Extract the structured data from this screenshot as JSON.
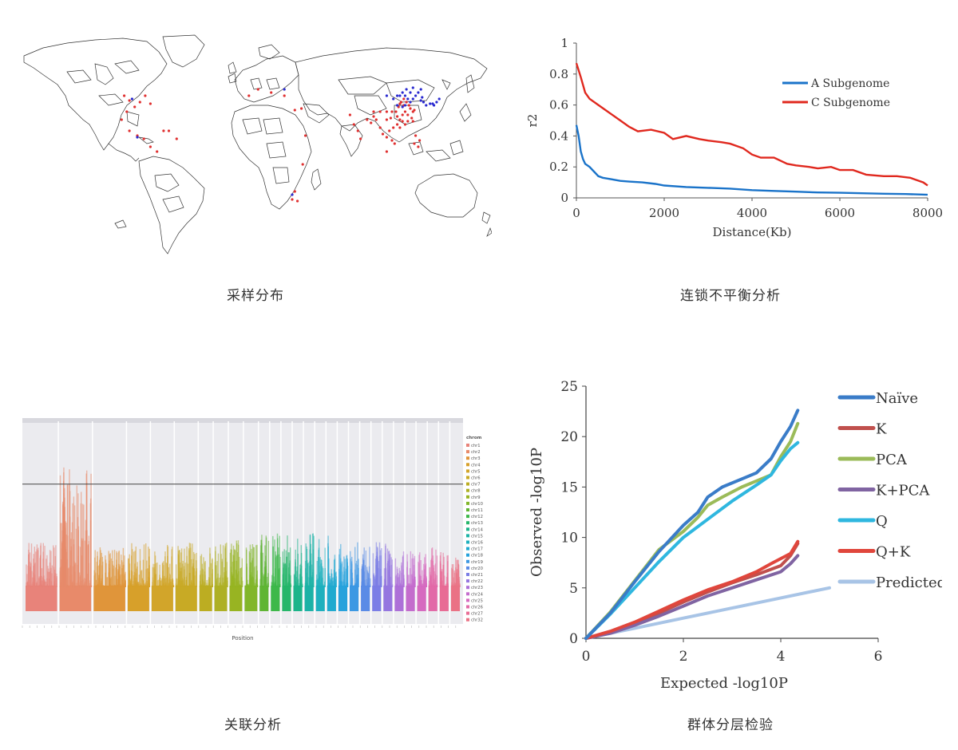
{
  "captions": {
    "map": "采样分布",
    "ld": "连锁不平衡分析",
    "gwas": "关联分析",
    "qq": "群体分层检验"
  },
  "chart_data": [
    {
      "id": "sampling-map",
      "type": "scatter",
      "title": "",
      "colors": {
        "red": "#e03030",
        "blue": "#2a2ad0"
      },
      "series": [
        {
          "values_lonlat": [
            [
              -100,
              40
            ],
            [
              -96,
              37
            ],
            [
              -92,
              33
            ],
            [
              -88,
              36
            ],
            [
              -84,
              40
            ],
            [
              -80,
              35
            ],
            [
              -98,
              30
            ],
            [
              -102,
              25
            ],
            [
              -96,
              18
            ],
            [
              -90,
              15
            ],
            [
              -85,
              13
            ],
            [
              -80,
              8
            ],
            [
              -75,
              5
            ],
            [
              -70,
              18
            ],
            [
              -66,
              18
            ],
            [
              -60,
              13
            ],
            [
              -5,
              40
            ],
            [
              2,
              44
            ],
            [
              12,
              42
            ],
            [
              22,
              40
            ],
            [
              30,
              31
            ],
            [
              35,
              32
            ],
            [
              38,
              15
            ],
            [
              36,
              -3
            ],
            [
              30,
              -20
            ],
            [
              28,
              -25
            ],
            [
              32,
              -26
            ],
            [
              72,
              28
            ],
            [
              75,
              22
            ],
            [
              78,
              18
            ],
            [
              80,
              13
            ],
            [
              85,
              25
            ],
            [
              88,
              23
            ],
            [
              90,
              27
            ],
            [
              92,
              25
            ],
            [
              95,
              20
            ],
            [
              97,
              16
            ],
            [
              100,
              14
            ],
            [
              102,
              18
            ],
            [
              104,
              12
            ],
            [
              105,
              20
            ],
            [
              106,
              10
            ],
            [
              100,
              5
            ],
            [
              110,
              20
            ],
            [
              108,
              22
            ],
            [
              110,
              25
            ],
            [
              112,
              28
            ],
            [
              114,
              30
            ],
            [
              116,
              28
            ],
            [
              118,
              32
            ],
            [
              120,
              30
            ],
            [
              113,
              34
            ],
            [
              111,
              36
            ],
            [
              115,
              36
            ],
            [
              117,
              34
            ],
            [
              121,
              31
            ],
            [
              119,
              26
            ],
            [
              107,
              30
            ],
            [
              104,
              30
            ],
            [
              103,
              26
            ],
            [
              100,
              25
            ],
            [
              109,
              33
            ],
            [
              112,
              24
            ],
            [
              116,
              24
            ],
            [
              114,
              22
            ],
            [
              120,
              24
            ],
            [
              122,
              15
            ],
            [
              121,
              10
            ],
            [
              124,
              8
            ],
            [
              125,
              12
            ],
            [
              100,
              30
            ],
            [
              95,
              30
            ],
            [
              90,
              30
            ],
            [
              110,
              35
            ],
            [
              113,
              38
            ],
            [
              108,
              27
            ]
          ]
        },
        {
          "values_lonlat": [
            [
              -94,
              38
            ],
            [
              -90,
              14
            ],
            [
              22,
              44
            ],
            [
              28,
              -22
            ],
            [
              114,
              40
            ],
            [
              116,
              38
            ],
            [
              118,
              42
            ],
            [
              120,
              38
            ],
            [
              122,
              40
            ],
            [
              124,
              42
            ],
            [
              126,
              44
            ],
            [
              126,
              37
            ],
            [
              128,
              36
            ],
            [
              127,
              39
            ],
            [
              130,
              34
            ],
            [
              133,
              35
            ],
            [
              135,
              35
            ],
            [
              138,
              36
            ],
            [
              140,
              38
            ],
            [
              136,
              34
            ],
            [
              110,
              40
            ],
            [
              112,
              42
            ],
            [
              108,
              40
            ],
            [
              105,
              38
            ],
            [
              100,
              40
            ],
            [
              115,
              44
            ],
            [
              120,
              45
            ],
            [
              118,
              36
            ],
            [
              112,
              33
            ],
            [
              108,
              34
            ],
            [
              114,
              34
            ]
          ]
        }
      ]
    },
    {
      "id": "ld-decay",
      "type": "line",
      "title": "",
      "xlabel": "Distance(Kb)",
      "ylabel": "r2",
      "xlim": [
        0,
        8000
      ],
      "ylim": [
        0,
        1
      ],
      "xticks": [
        "0",
        "2000",
        "4000",
        "6000",
        "8000"
      ],
      "yticks": [
        "0",
        "0.2",
        "0.4",
        "0.6",
        "0.8",
        "1"
      ],
      "legend_position": "top-right",
      "series": [
        {
          "name": "A Subgenome",
          "color": "#1a73c9",
          "x": [
            0,
            50,
            100,
            150,
            200,
            300,
            400,
            500,
            600,
            800,
            1000,
            1200,
            1500,
            1800,
            2000,
            2500,
            3000,
            3500,
            4000,
            4500,
            5000,
            5500,
            6000,
            6500,
            7000,
            7500,
            8000
          ],
          "values": [
            0.47,
            0.4,
            0.3,
            0.25,
            0.22,
            0.2,
            0.17,
            0.14,
            0.13,
            0.12,
            0.11,
            0.105,
            0.1,
            0.09,
            0.08,
            0.07,
            0.065,
            0.06,
            0.05,
            0.045,
            0.04,
            0.035,
            0.033,
            0.03,
            0.027,
            0.025,
            0.02
          ]
        },
        {
          "name": "C Subgenome",
          "color": "#e0281e",
          "x": [
            0,
            100,
            200,
            300,
            500,
            700,
            1000,
            1200,
            1400,
            1700,
            2000,
            2200,
            2500,
            2800,
            3000,
            3300,
            3500,
            3800,
            4000,
            4200,
            4500,
            4800,
            5000,
            5300,
            5500,
            5800,
            6000,
            6300,
            6600,
            7000,
            7300,
            7600,
            7900,
            8000
          ],
          "values": [
            0.87,
            0.78,
            0.68,
            0.64,
            0.6,
            0.56,
            0.5,
            0.46,
            0.43,
            0.44,
            0.42,
            0.38,
            0.4,
            0.38,
            0.37,
            0.36,
            0.35,
            0.32,
            0.28,
            0.26,
            0.26,
            0.22,
            0.21,
            0.2,
            0.19,
            0.2,
            0.18,
            0.18,
            0.15,
            0.14,
            0.14,
            0.13,
            0.1,
            0.08
          ]
        }
      ]
    },
    {
      "id": "manhattan",
      "type": "scatter",
      "title": "",
      "xlabel": "Position",
      "legend_title": "chrom",
      "legend_position": "right",
      "threshold_fraction": 0.31,
      "chromosomes": [
        {
          "name": "chr1",
          "color": "#e8837a",
          "peak": 0.27
        },
        {
          "name": "chr2",
          "color": "#e88a6a",
          "peak": 0.72
        },
        {
          "name": "chr3",
          "color": "#e0953a",
          "peak": 0.26
        },
        {
          "name": "chr4",
          "color": "#d7a02a",
          "peak": 0.27
        },
        {
          "name": "chr5",
          "color": "#d2a52a",
          "peak": 0.26
        },
        {
          "name": "chr6",
          "color": "#c8aa25",
          "peak": 0.27
        },
        {
          "name": "chr7",
          "color": "#bcad22",
          "peak": 0.25
        },
        {
          "name": "chr8",
          "color": "#aeb024",
          "peak": 0.27
        },
        {
          "name": "chr9",
          "color": "#98b422",
          "peak": 0.28
        },
        {
          "name": "chr10",
          "color": "#82b62a",
          "peak": 0.27
        },
        {
          "name": "chr11",
          "color": "#5fb534",
          "peak": 0.36
        },
        {
          "name": "chr12",
          "color": "#3db84a",
          "peak": 0.33
        },
        {
          "name": "chr13",
          "color": "#25b66a",
          "peak": 0.31
        },
        {
          "name": "chr14",
          "color": "#1cb48a",
          "peak": 0.32
        },
        {
          "name": "chr15",
          "color": "#1cb2a6",
          "peak": 0.34
        },
        {
          "name": "chr16",
          "color": "#1eb0be",
          "peak": 0.3
        },
        {
          "name": "chr17",
          "color": "#20aacf",
          "peak": 0.32
        },
        {
          "name": "chr18",
          "color": "#27a2dc",
          "peak": 0.3
        },
        {
          "name": "chr19",
          "color": "#3c98e3",
          "peak": 0.29
        },
        {
          "name": "chr20",
          "color": "#5a8be6",
          "peak": 0.25
        },
        {
          "name": "chr21",
          "color": "#7b7ee6",
          "peak": 0.27
        },
        {
          "name": "chr22",
          "color": "#9576e0",
          "peak": 0.26
        },
        {
          "name": "chr23",
          "color": "#ad70d8",
          "peak": 0.23
        },
        {
          "name": "chr24",
          "color": "#c46ccd",
          "peak": 0.22
        },
        {
          "name": "chr25",
          "color": "#d66ac0",
          "peak": 0.21
        },
        {
          "name": "chr26",
          "color": "#e26aa8",
          "peak": 0.24
        },
        {
          "name": "chr27",
          "color": "#e86c95",
          "peak": 0.21
        },
        {
          "name": "chr32",
          "color": "#ea7285",
          "peak": 0.2
        }
      ],
      "legend_labels": [
        "chr1",
        "chr2",
        "chr3",
        "chr4",
        "chr5",
        "chr6",
        "chr7",
        "chr8",
        "chr9",
        "chr10",
        "chr11",
        "chr12",
        "chr13",
        "chr14",
        "chr15",
        "chr16",
        "chr17",
        "chr18",
        "chr19",
        "chr20",
        "chr21",
        "chr22",
        "chr23",
        "chr24",
        "chr25",
        "chr26",
        "chr27",
        "chr32"
      ]
    },
    {
      "id": "qq-plot",
      "type": "line",
      "title": "",
      "xlabel": "Expected -log10P",
      "ylabel": "Observed -log10P",
      "xlim": [
        0,
        6
      ],
      "ylim": [
        0,
        25
      ],
      "xticks": [
        "0",
        "2",
        "4",
        "6"
      ],
      "yticks": [
        "0",
        "5",
        "10",
        "15",
        "20",
        "25"
      ],
      "legend_position": "right",
      "series": [
        {
          "name": "Naïve",
          "color": "#3a7cc8",
          "x": [
            0,
            0.5,
            1,
            1.5,
            2,
            2.3,
            2.5,
            2.8,
            3.2,
            3.5,
            3.8,
            4.0,
            4.2,
            4.35
          ],
          "values": [
            0,
            2.5,
            5.6,
            8.6,
            11.2,
            12.5,
            14.0,
            15.0,
            15.8,
            16.4,
            17.8,
            19.5,
            21,
            22.6
          ]
        },
        {
          "name": "K",
          "color": "#c0504d",
          "x": [
            0,
            0.5,
            1,
            1.5,
            2,
            2.5,
            3,
            3.5,
            4,
            4.2,
            4.35
          ],
          "values": [
            0,
            0.6,
            1.5,
            2.5,
            3.6,
            4.6,
            5.5,
            6.3,
            7.2,
            8.2,
            9.4
          ]
        },
        {
          "name": "PCA",
          "color": "#9bbb59",
          "x": [
            0,
            0.5,
            1,
            1.5,
            2,
            2.3,
            2.5,
            2.8,
            3.2,
            3.5,
            3.8,
            4.0,
            4.2,
            4.35
          ],
          "values": [
            0,
            2.6,
            5.7,
            8.8,
            10.6,
            12.0,
            13.2,
            14.0,
            15.0,
            15.6,
            16.2,
            18.0,
            19.5,
            21.3
          ]
        },
        {
          "name": "K+PCA",
          "color": "#8064a2",
          "x": [
            0,
            0.5,
            1,
            1.5,
            2,
            2.5,
            3,
            3.5,
            4,
            4.2,
            4.35
          ],
          "values": [
            0,
            0.5,
            1.3,
            2.2,
            3.2,
            4.2,
            5.0,
            5.8,
            6.6,
            7.4,
            8.2
          ]
        },
        {
          "name": "Q",
          "color": "#2fb7df",
          "x": [
            0,
            0.5,
            1,
            1.5,
            2,
            2.5,
            3,
            3.5,
            3.8,
            4.0,
            4.2,
            4.35
          ],
          "values": [
            0,
            2.4,
            5.0,
            7.6,
            10.0,
            11.8,
            13.6,
            15.2,
            16.2,
            17.6,
            18.8,
            19.4
          ]
        },
        {
          "name": "Q+K",
          "color": "#e0463c",
          "x": [
            0,
            0.5,
            1,
            1.5,
            2,
            2.5,
            3,
            3.5,
            3.8,
            4.0,
            4.2,
            4.35
          ],
          "values": [
            0,
            0.7,
            1.6,
            2.7,
            3.8,
            4.8,
            5.6,
            6.6,
            7.4,
            7.9,
            8.4,
            9.6
          ]
        },
        {
          "name": "Predicted",
          "color": "#a8c4e6",
          "x": [
            0,
            1,
            2,
            3,
            4,
            5
          ],
          "values": [
            0,
            1,
            2,
            3,
            4,
            5
          ]
        }
      ]
    }
  ]
}
